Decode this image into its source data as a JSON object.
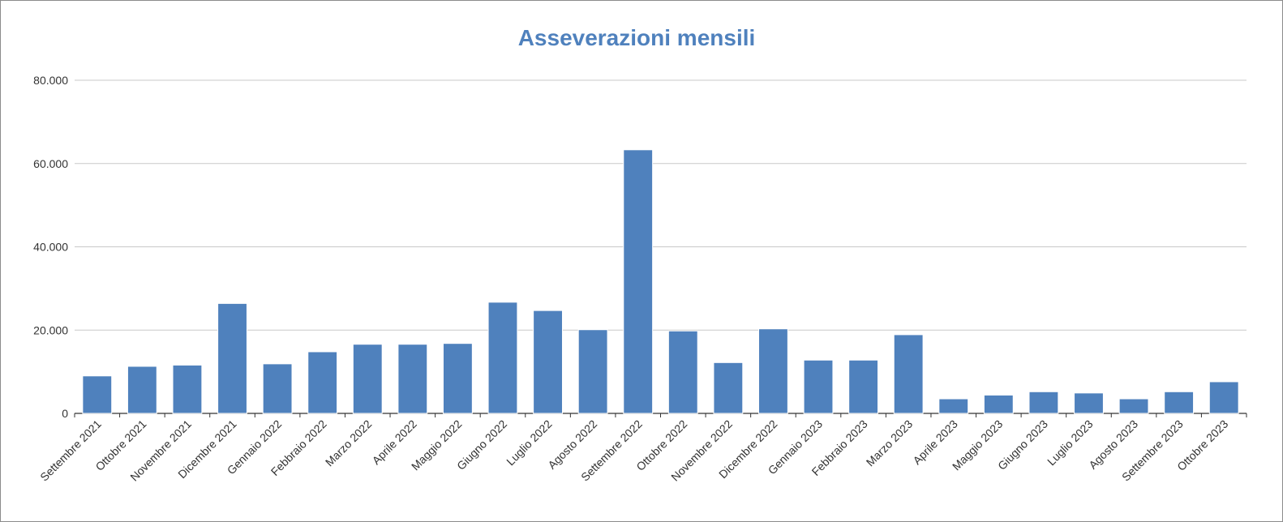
{
  "chart_data": {
    "type": "bar",
    "title": "Asseverazioni mensili",
    "xlabel": "",
    "ylabel": "",
    "ylim": [
      0,
      80000
    ],
    "yticks": [
      0,
      20000,
      40000,
      60000,
      80000
    ],
    "ytick_labels": [
      "0",
      "20.000",
      "40.000",
      "60.000",
      "80.000"
    ],
    "grid": true,
    "legend": "none",
    "bar_color": "#4f81bd",
    "categories": [
      "Settembre 2021",
      "Ottobre 2021",
      "Novembre 2021",
      "Dicembre 2021",
      "Gennaio 2022",
      "Febbraio 2022",
      "Marzo 2022",
      "Aprile 2022",
      "Maggio 2022",
      "Giugno 2022",
      "Luglio 2022",
      "Agosto 2022",
      "Settembre 2022",
      "Ottobre 2022",
      "Novembre 2022",
      "Dicembre 2022",
      "Gennaio 2023",
      "Febbraio 2023",
      "Marzo 2023",
      "Aprile 2023",
      "Maggio 2023",
      "Giugno 2023",
      "Luglio 2023",
      "Agosto 2023",
      "Settembre 2023",
      "Ottobre 2023"
    ],
    "values": [
      9000,
      11300,
      11600,
      26400,
      11900,
      14800,
      16600,
      16600,
      16800,
      26700,
      24700,
      20100,
      63300,
      19800,
      12200,
      20300,
      12800,
      12800,
      18900,
      3500,
      4400,
      5200,
      4900,
      3500,
      5200,
      7600
    ]
  }
}
